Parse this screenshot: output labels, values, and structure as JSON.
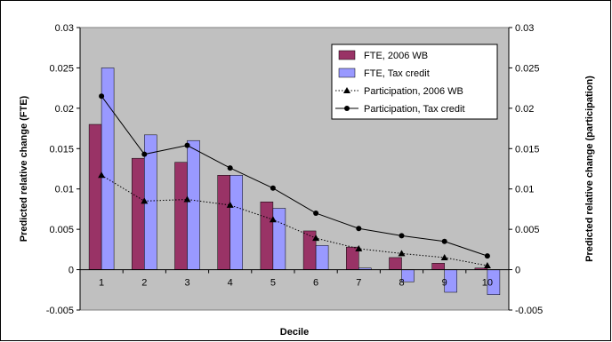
{
  "chart_data": {
    "type": "bar",
    "categories": [
      "1",
      "2",
      "3",
      "4",
      "5",
      "6",
      "7",
      "8",
      "9",
      "10"
    ],
    "xlabel": "Decile",
    "ylabel": "Predicted relative change (FTE)",
    "y2label": "Predicted relative change (participation)",
    "ylim": [
      -0.005,
      0.03
    ],
    "y2lim": [
      -0.005,
      0.03
    ],
    "yticks": [
      "-0.005",
      "0",
      "0.005",
      "0.01",
      "0.015",
      "0.02",
      "0.025",
      "0.03"
    ],
    "yticks_values": [
      -0.005,
      0,
      0.005,
      0.01,
      0.015,
      0.02,
      0.025,
      0.03
    ],
    "grid": false,
    "legend_position": "top-right",
    "series": [
      {
        "name": "FTE, 2006 WB",
        "kind": "bar",
        "color": "#993366",
        "values": [
          0.018,
          0.0138,
          0.0133,
          0.0117,
          0.0084,
          0.0048,
          0.0028,
          0.0015,
          0.0008,
          0.0002
        ]
      },
      {
        "name": "FTE, Tax credit",
        "kind": "bar",
        "color": "#9999ff",
        "values": [
          0.025,
          0.0167,
          0.016,
          0.0117,
          0.0076,
          0.003,
          0.0002,
          -0.0015,
          -0.0028,
          -0.0031
        ]
      },
      {
        "name": "Participation, 2006 WB",
        "kind": "line",
        "style": "dotted",
        "marker": "triangle",
        "color": "#000000",
        "values": [
          0.0117,
          0.0085,
          0.0087,
          0.008,
          0.0062,
          0.0039,
          0.0026,
          0.002,
          0.0015,
          0.0005
        ]
      },
      {
        "name": "Participation, Tax credit",
        "kind": "line",
        "style": "solid",
        "marker": "circle",
        "color": "#000000",
        "values": [
          0.0215,
          0.0143,
          0.0154,
          0.0126,
          0.0101,
          0.007,
          0.0051,
          0.0042,
          0.0035,
          0.0017
        ]
      }
    ]
  }
}
